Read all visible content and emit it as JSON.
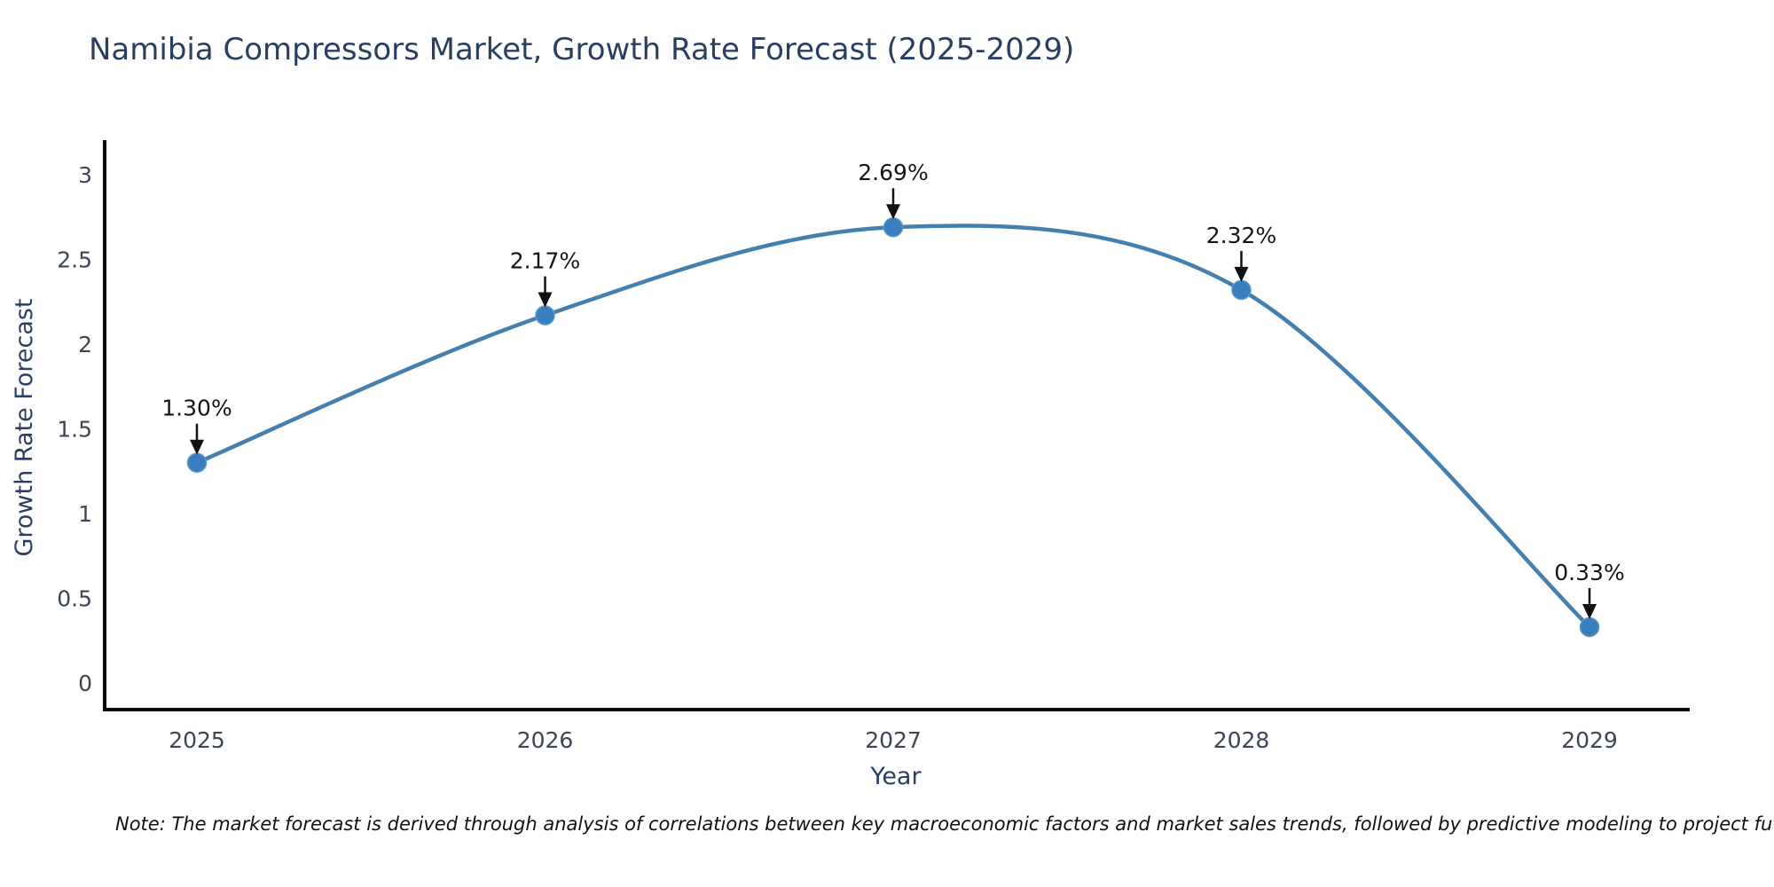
{
  "chart_data": {
    "type": "line",
    "title": "Namibia Compressors Market, Growth Rate Forecast (2025-2029)",
    "xlabel": "Year",
    "ylabel": "Growth Rate Forecast",
    "categories": [
      "2025",
      "2026",
      "2027",
      "2028",
      "2029"
    ],
    "series": [
      {
        "name": "Growth Rate Forecast",
        "values": [
          1.3,
          2.17,
          2.69,
          2.32,
          0.33
        ],
        "point_labels": [
          "1.30%",
          "2.17%",
          "2.69%",
          "2.32%",
          "0.33%"
        ]
      }
    ],
    "yticks": [
      "0",
      "0.5",
      "1",
      "1.5",
      "2",
      "2.5",
      "3"
    ],
    "ytick_values": [
      0,
      0.5,
      1,
      1.5,
      2,
      2.5,
      3
    ],
    "ylim": [
      -0.16,
      3.19
    ],
    "grid": false,
    "legend": "none",
    "colors": {
      "line": "#457fae",
      "marker": "#3a7ebd",
      "axis": "#0c0c0c",
      "title_text": "#2a3f5f",
      "annotation": "#111111"
    },
    "note": "Note: The market forecast is derived through analysis of correlations between key macroeconomic factors and market sales trends, followed by predictive modeling to project future sales"
  }
}
